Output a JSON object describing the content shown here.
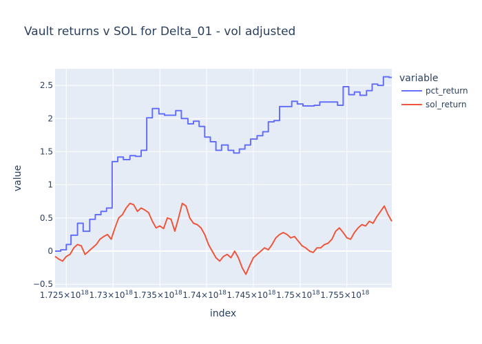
{
  "chart_data": {
    "type": "line",
    "title": "Vault returns v SOL for Delta_01 - vol adjusted",
    "xlabel": "index",
    "ylabel": "value",
    "legend_title": "variable",
    "legend_position": "top-right",
    "grid": true,
    "background_color": "#e5ecf6",
    "xlim": [
      1.7238e+18,
      1.7598e+18
    ],
    "ylim": [
      -0.55,
      2.75
    ],
    "x_ticks": [
      {
        "value": 1.725e+18,
        "mantissa": "1.725",
        "exp": "18"
      },
      {
        "value": 1.73e+18,
        "mantissa": "1.73",
        "exp": "18"
      },
      {
        "value": 1.735e+18,
        "mantissa": "1.735",
        "exp": "18"
      },
      {
        "value": 1.74e+18,
        "mantissa": "1.74",
        "exp": "18"
      },
      {
        "value": 1.745e+18,
        "mantissa": "1.745",
        "exp": "18"
      },
      {
        "value": 1.75e+18,
        "mantissa": "1.75",
        "exp": "18"
      },
      {
        "value": 1.755e+18,
        "mantissa": "1.755",
        "exp": "18"
      }
    ],
    "x_tick_times": "×10",
    "y_ticks": [
      {
        "value": -0.5,
        "label": "−0.5"
      },
      {
        "value": 0,
        "label": "0"
      },
      {
        "value": 0.5,
        "label": "0.5"
      },
      {
        "value": 1,
        "label": "1"
      },
      {
        "value": 1.5,
        "label": "1.5"
      },
      {
        "value": 2,
        "label": "2"
      },
      {
        "value": 2.5,
        "label": "2.5"
      }
    ],
    "series": [
      {
        "name": "pct_return",
        "color": "#636efa",
        "step": true,
        "x": [
          1.7238e+18,
          1.7244e+18,
          1.725e+18,
          1.7255e+18,
          1.7262e+18,
          1.7268e+18,
          1.7275e+18,
          1.7281e+18,
          1.7287e+18,
          1.7293e+18,
          1.7299e+18,
          1.7305e+18,
          1.7311e+18,
          1.7318e+18,
          1.7324e+18,
          1.733e+18,
          1.7336e+18,
          1.7342e+18,
          1.7349e+18,
          1.7355e+18,
          1.7361e+18,
          1.7367e+18,
          1.7373e+18,
          1.738e+18,
          1.7386e+18,
          1.7392e+18,
          1.7398e+18,
          1.7404e+18,
          1.741e+18,
          1.7416e+18,
          1.7423e+18,
          1.7429e+18,
          1.7435e+18,
          1.7441e+18,
          1.7447e+18,
          1.7454e+18,
          1.746e+18,
          1.7466e+18,
          1.7472e+18,
          1.7478e+18,
          1.7484e+18,
          1.7491e+18,
          1.7497e+18,
          1.7503e+18,
          1.7509e+18,
          1.7515e+18,
          1.7521e+18,
          1.7528e+18,
          1.7534e+18,
          1.754e+18,
          1.7546e+18,
          1.7552e+18,
          1.7558e+18,
          1.7564e+18,
          1.7571e+18,
          1.7577e+18,
          1.7583e+18,
          1.7589e+18,
          1.7595e+18,
          1.7598e+18
        ],
        "y": [
          0.0,
          0.02,
          0.1,
          0.24,
          0.42,
          0.3,
          0.48,
          0.55,
          0.6,
          0.65,
          1.35,
          1.42,
          1.38,
          1.44,
          1.43,
          1.52,
          2.01,
          2.15,
          2.07,
          2.05,
          2.05,
          2.12,
          2.0,
          1.92,
          1.96,
          1.88,
          1.72,
          1.65,
          1.52,
          1.6,
          1.52,
          1.48,
          1.54,
          1.6,
          1.69,
          1.74,
          1.8,
          1.95,
          1.97,
          2.18,
          2.18,
          2.26,
          2.22,
          2.19,
          2.19,
          2.2,
          2.25,
          2.25,
          2.25,
          2.2,
          2.48,
          2.36,
          2.4,
          2.35,
          2.42,
          2.52,
          2.5,
          2.63,
          2.62,
          2.62
        ]
      },
      {
        "name": "sol_return",
        "color": "#ef553b",
        "step": false,
        "x": [
          1.7238e+18,
          1.7242e+18,
          1.7246e+18,
          1.725e+18,
          1.7254e+18,
          1.7258e+18,
          1.7262e+18,
          1.7266e+18,
          1.727e+18,
          1.7274e+18,
          1.7278e+18,
          1.7282e+18,
          1.7286e+18,
          1.729e+18,
          1.7294e+18,
          1.7298e+18,
          1.7302e+18,
          1.7306e+18,
          1.731e+18,
          1.7314e+18,
          1.7318e+18,
          1.7322e+18,
          1.7326e+18,
          1.733e+18,
          1.7334e+18,
          1.7338e+18,
          1.7342e+18,
          1.7346e+18,
          1.735e+18,
          1.7354e+18,
          1.7358e+18,
          1.7362e+18,
          1.7366e+18,
          1.737e+18,
          1.7374e+18,
          1.7378e+18,
          1.7382e+18,
          1.7386e+18,
          1.739e+18,
          1.7394e+18,
          1.7398e+18,
          1.7402e+18,
          1.7406e+18,
          1.741e+18,
          1.7414e+18,
          1.7418e+18,
          1.7422e+18,
          1.7426e+18,
          1.743e+18,
          1.7434e+18,
          1.7438e+18,
          1.7442e+18,
          1.7446e+18,
          1.745e+18,
          1.7454e+18,
          1.7458e+18,
          1.7462e+18,
          1.7466e+18,
          1.747e+18,
          1.7474e+18,
          1.7478e+18,
          1.7482e+18,
          1.7486e+18,
          1.749e+18,
          1.7494e+18,
          1.7498e+18,
          1.7502e+18,
          1.7506e+18,
          1.751e+18,
          1.7514e+18,
          1.7518e+18,
          1.7522e+18,
          1.7526e+18,
          1.753e+18,
          1.7534e+18,
          1.7538e+18,
          1.7542e+18,
          1.7546e+18,
          1.755e+18,
          1.7554e+18,
          1.7558e+18,
          1.7562e+18,
          1.7566e+18,
          1.757e+18,
          1.7574e+18,
          1.7578e+18,
          1.7582e+18,
          1.7586e+18,
          1.759e+18,
          1.7594e+18,
          1.7598e+18
        ],
        "y": [
          -0.08,
          -0.12,
          -0.15,
          -0.08,
          -0.05,
          0.05,
          0.1,
          0.08,
          -0.05,
          0.0,
          0.05,
          0.1,
          0.18,
          0.22,
          0.25,
          0.18,
          0.35,
          0.5,
          0.55,
          0.65,
          0.72,
          0.7,
          0.6,
          0.65,
          0.62,
          0.58,
          0.45,
          0.35,
          0.38,
          0.34,
          0.5,
          0.48,
          0.3,
          0.5,
          0.72,
          0.68,
          0.5,
          0.42,
          0.4,
          0.35,
          0.25,
          0.1,
          0.0,
          -0.1,
          -0.15,
          -0.08,
          -0.05,
          -0.1,
          0.0,
          -0.1,
          -0.25,
          -0.35,
          -0.22,
          -0.1,
          -0.05,
          0.0,
          0.05,
          0.02,
          0.1,
          0.2,
          0.25,
          0.28,
          0.25,
          0.2,
          0.22,
          0.15,
          0.08,
          0.05,
          0.0,
          -0.02,
          0.05,
          0.05,
          0.1,
          0.12,
          0.18,
          0.3,
          0.35,
          0.28,
          0.2,
          0.18,
          0.28,
          0.35,
          0.4,
          0.38,
          0.45,
          0.42,
          0.52,
          0.6,
          0.68,
          0.55,
          0.45
        ]
      }
    ]
  }
}
